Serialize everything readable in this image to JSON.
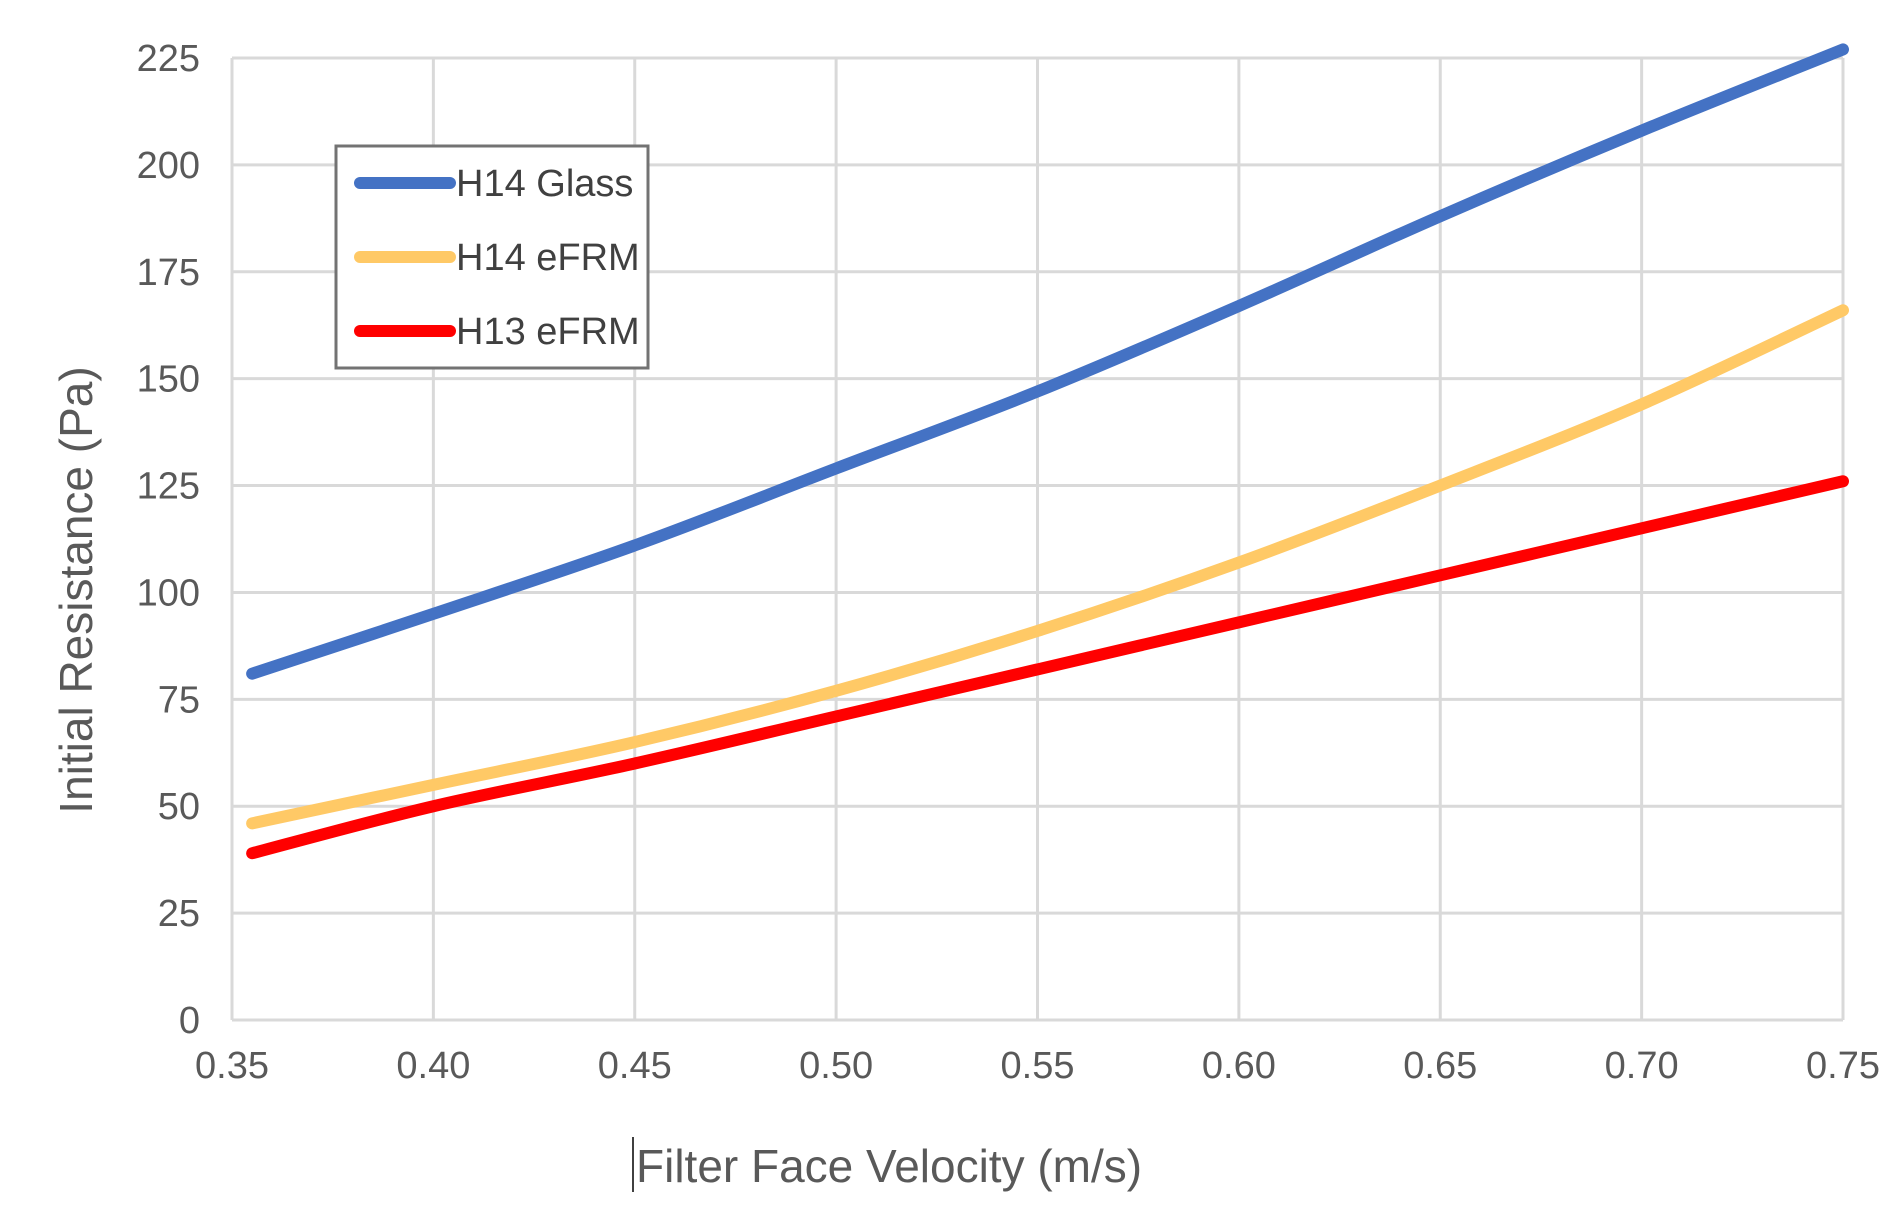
{
  "chart_data": {
    "type": "line",
    "title": "",
    "xlabel": "Filter Face Velocity (m/s)",
    "ylabel": "Initial Resistance (Pa)",
    "xlim": [
      0.35,
      0.75
    ],
    "ylim": [
      0,
      225
    ],
    "x_ticks": [
      0.35,
      0.4,
      0.45,
      0.5,
      0.55,
      0.6,
      0.65,
      0.7,
      0.75
    ],
    "x_tick_labels": [
      "0.35",
      "0.40",
      "0.45",
      "0.50",
      "0.55",
      "0.60",
      "0.65",
      "0.70",
      "0.75"
    ],
    "y_ticks": [
      0,
      25,
      50,
      75,
      100,
      125,
      150,
      175,
      200,
      225
    ],
    "y_tick_labels": [
      "0",
      "25",
      "50",
      "75",
      "100",
      "125",
      "150",
      "175",
      "200",
      "225"
    ],
    "grid": true,
    "legend_position": "top-left",
    "series": [
      {
        "name": "H14 Glass",
        "color": "#4472C4",
        "points": [
          [
            0.355,
            81
          ],
          [
            0.4,
            95
          ],
          [
            0.45,
            111
          ],
          [
            0.5,
            129
          ],
          [
            0.55,
            147
          ],
          [
            0.6,
            167
          ],
          [
            0.65,
            188
          ],
          [
            0.7,
            208
          ],
          [
            0.75,
            227
          ]
        ]
      },
      {
        "name": "H14 eFRM",
        "color": "#FFC966",
        "points": [
          [
            0.355,
            46
          ],
          [
            0.4,
            55
          ],
          [
            0.45,
            65
          ],
          [
            0.5,
            77
          ],
          [
            0.55,
            91
          ],
          [
            0.6,
            107
          ],
          [
            0.65,
            125
          ],
          [
            0.7,
            144
          ],
          [
            0.75,
            166
          ]
        ]
      },
      {
        "name": "H13 eFRM",
        "color": "#FF0000",
        "points": [
          [
            0.355,
            39
          ],
          [
            0.4,
            50
          ],
          [
            0.45,
            60
          ],
          [
            0.5,
            71
          ],
          [
            0.55,
            82
          ],
          [
            0.6,
            93
          ],
          [
            0.65,
            104
          ],
          [
            0.7,
            115
          ],
          [
            0.75,
            126
          ]
        ]
      }
    ]
  }
}
